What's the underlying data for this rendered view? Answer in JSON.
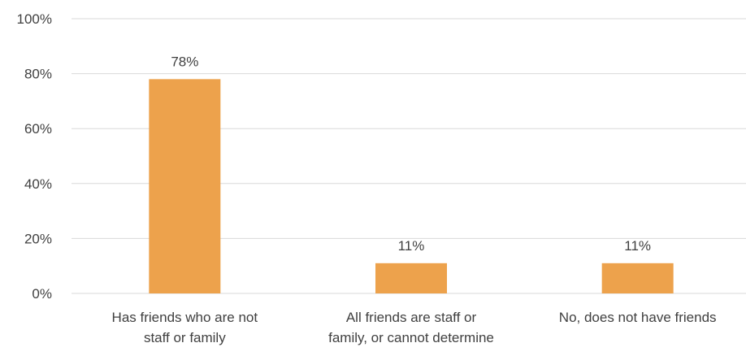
{
  "chart_data": {
    "type": "bar",
    "title": "",
    "xlabel": "",
    "ylabel": "",
    "categories": [
      [
        "Has friends who are not",
        "staff or family"
      ],
      [
        "All friends are staff or",
        "family, or cannot determine"
      ],
      [
        "No, does not have friends"
      ]
    ],
    "values": [
      78,
      11,
      11
    ],
    "data_labels": [
      "78%",
      "11%",
      "11%"
    ],
    "ylim": [
      0,
      100
    ],
    "yticks": [
      {
        "value": 0,
        "label": "0%"
      },
      {
        "value": 20,
        "label": "20%"
      },
      {
        "value": 40,
        "label": "40%"
      },
      {
        "value": 60,
        "label": "60%"
      },
      {
        "value": 80,
        "label": "80%"
      },
      {
        "value": 100,
        "label": "100%"
      }
    ],
    "grid": true,
    "legend": "none",
    "colors": {
      "bar": "#EDA24C",
      "grid": "#D9D9D9",
      "text": "#404040"
    }
  }
}
